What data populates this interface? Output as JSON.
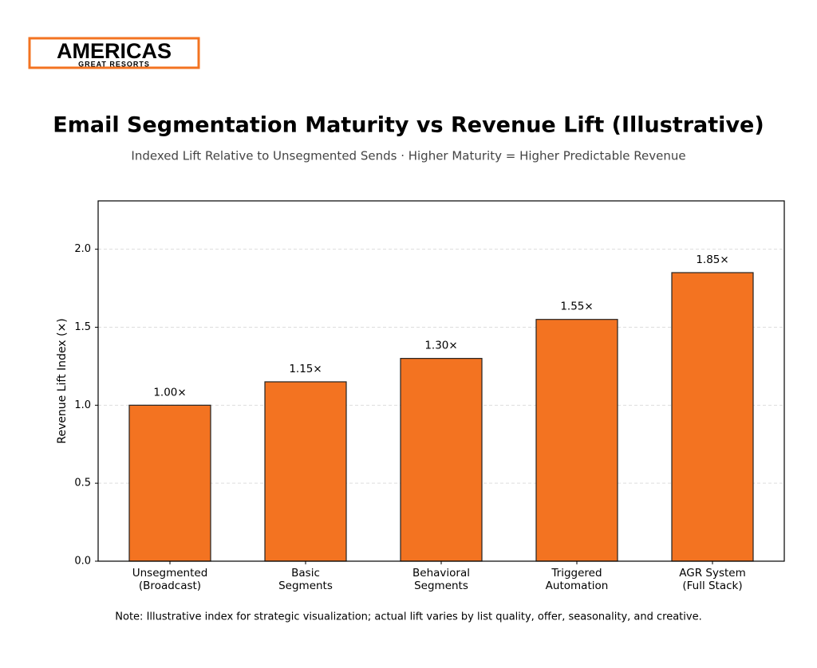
{
  "logo": {
    "name": "AMERICAS",
    "tagline": "GREAT RESORTS"
  },
  "chart_data": {
    "type": "bar",
    "title": "Email Segmentation Maturity vs Revenue Lift (Illustrative)",
    "subtitle": "Indexed Lift Relative to Unsegmented Sends · Higher Maturity = Higher Predictable Revenue",
    "y_label": "Revenue Lift Index (×)",
    "note": "Note: Illustrative index for strategic visualization; actual lift varies by list quality, offer, seasonality, and creative.",
    "categories": [
      "Unsegmented\n(Broadcast)",
      "Basic\nSegments",
      "Behavioral\nSegments",
      "Triggered\nAutomation",
      "AGR System\n(Full Stack)"
    ],
    "values": [
      1.0,
      1.15,
      1.3,
      1.55,
      1.85
    ],
    "value_labels": [
      "1.00×",
      "1.15×",
      "1.30×",
      "1.55×",
      "1.85×"
    ],
    "color": "#f37321",
    "ylim": [
      0,
      2.31
    ],
    "yticks": [
      {
        "value": 0,
        "label": "0.0"
      },
      0.5,
      {
        "value": 1,
        "label": "1.0"
      },
      1.5,
      {
        "value": 2,
        "label": "2.0"
      }
    ],
    "grid": true
  }
}
